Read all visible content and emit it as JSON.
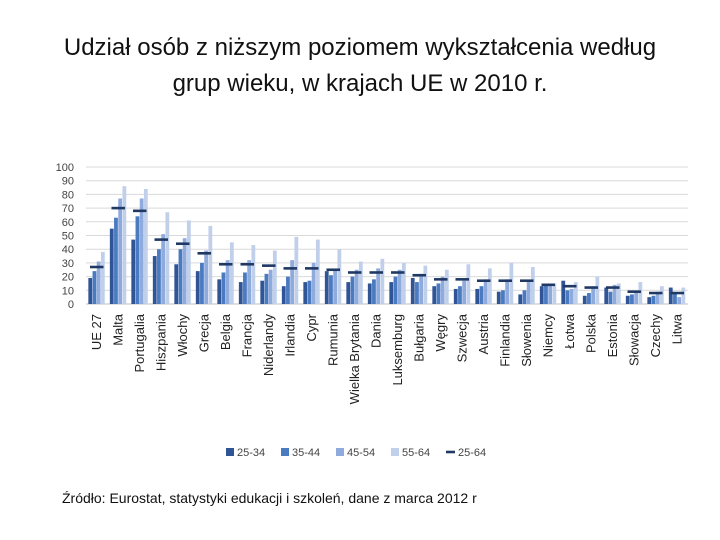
{
  "title": {
    "line1": "Udział osób z niższym poziomem wykształcenia według",
    "line2": "grup wieku, w krajach UE w 2010 r."
  },
  "source": "Źródło: Eurostat, statystyki edukacji i szkoleń, dane z marca 2012 r",
  "colors": {
    "s25_34": "#2f5597",
    "s35_44": "#4a7ac0",
    "s45_54": "#8faadc",
    "s55_64": "#c1d0ea",
    "marker": "#1f3864",
    "grid": "#d9d9d9",
    "axis_text": "#444444"
  },
  "chart_data": {
    "type": "bar",
    "ylim": [
      0,
      100
    ],
    "yticks": [
      0,
      10,
      20,
      30,
      40,
      50,
      60,
      70,
      80,
      90,
      100
    ],
    "grid": true,
    "legend_position": "bottom",
    "categories": [
      "UE 27",
      "Malta",
      "Portugalia",
      "Hiszpania",
      "Włochy",
      "Grecja",
      "Belgia",
      "Francja",
      "Niderlandy",
      "Irlandia",
      "Cypr",
      "Rumunia",
      "Wielka Brytania",
      "Dania",
      "Luksemburg",
      "Bułgaria",
      "Węgry",
      "Szwecja",
      "Austria",
      "Finlandia",
      "Słowenia",
      "Niemcy",
      "Łotwa",
      "Polska",
      "Estonia",
      "Słowacja",
      "Czechy",
      "Litwa"
    ],
    "series": [
      {
        "name": "25-34",
        "values": [
          19,
          55,
          47,
          35,
          29,
          24,
          18,
          16,
          17,
          13,
          16,
          24,
          16,
          15,
          16,
          19,
          13,
          11,
          11,
          9,
          7,
          13,
          17,
          6,
          12,
          6,
          5,
          12
        ]
      },
      {
        "name": "35-44",
        "values": [
          24,
          63,
          64,
          40,
          40,
          30,
          23,
          23,
          22,
          20,
          17,
          21,
          20,
          18,
          20,
          16,
          15,
          13,
          13,
          10,
          10,
          14,
          10,
          8,
          9,
          7,
          6,
          8
        ]
      },
      {
        "name": "45-54",
        "values": [
          31,
          77,
          77,
          51,
          48,
          39,
          32,
          32,
          25,
          32,
          30,
          25,
          25,
          26,
          25,
          22,
          20,
          17,
          18,
          18,
          16,
          15,
          11,
          13,
          14,
          9,
          9,
          5
        ]
      },
      {
        "name": "55-64",
        "values": [
          38,
          86,
          84,
          67,
          61,
          57,
          45,
          43,
          39,
          49,
          47,
          40,
          31,
          33,
          30,
          28,
          25,
          29,
          26,
          30,
          27,
          15,
          16,
          20,
          15,
          16,
          13,
          12
        ]
      }
    ],
    "marker_series": {
      "name": "25-64",
      "values": [
        27,
        70,
        68,
        47,
        44,
        37,
        29,
        29,
        28,
        26,
        26,
        25,
        23,
        23,
        23,
        21,
        18,
        18,
        17,
        17,
        17,
        14,
        13,
        12,
        12,
        9,
        8,
        8
      ]
    }
  }
}
